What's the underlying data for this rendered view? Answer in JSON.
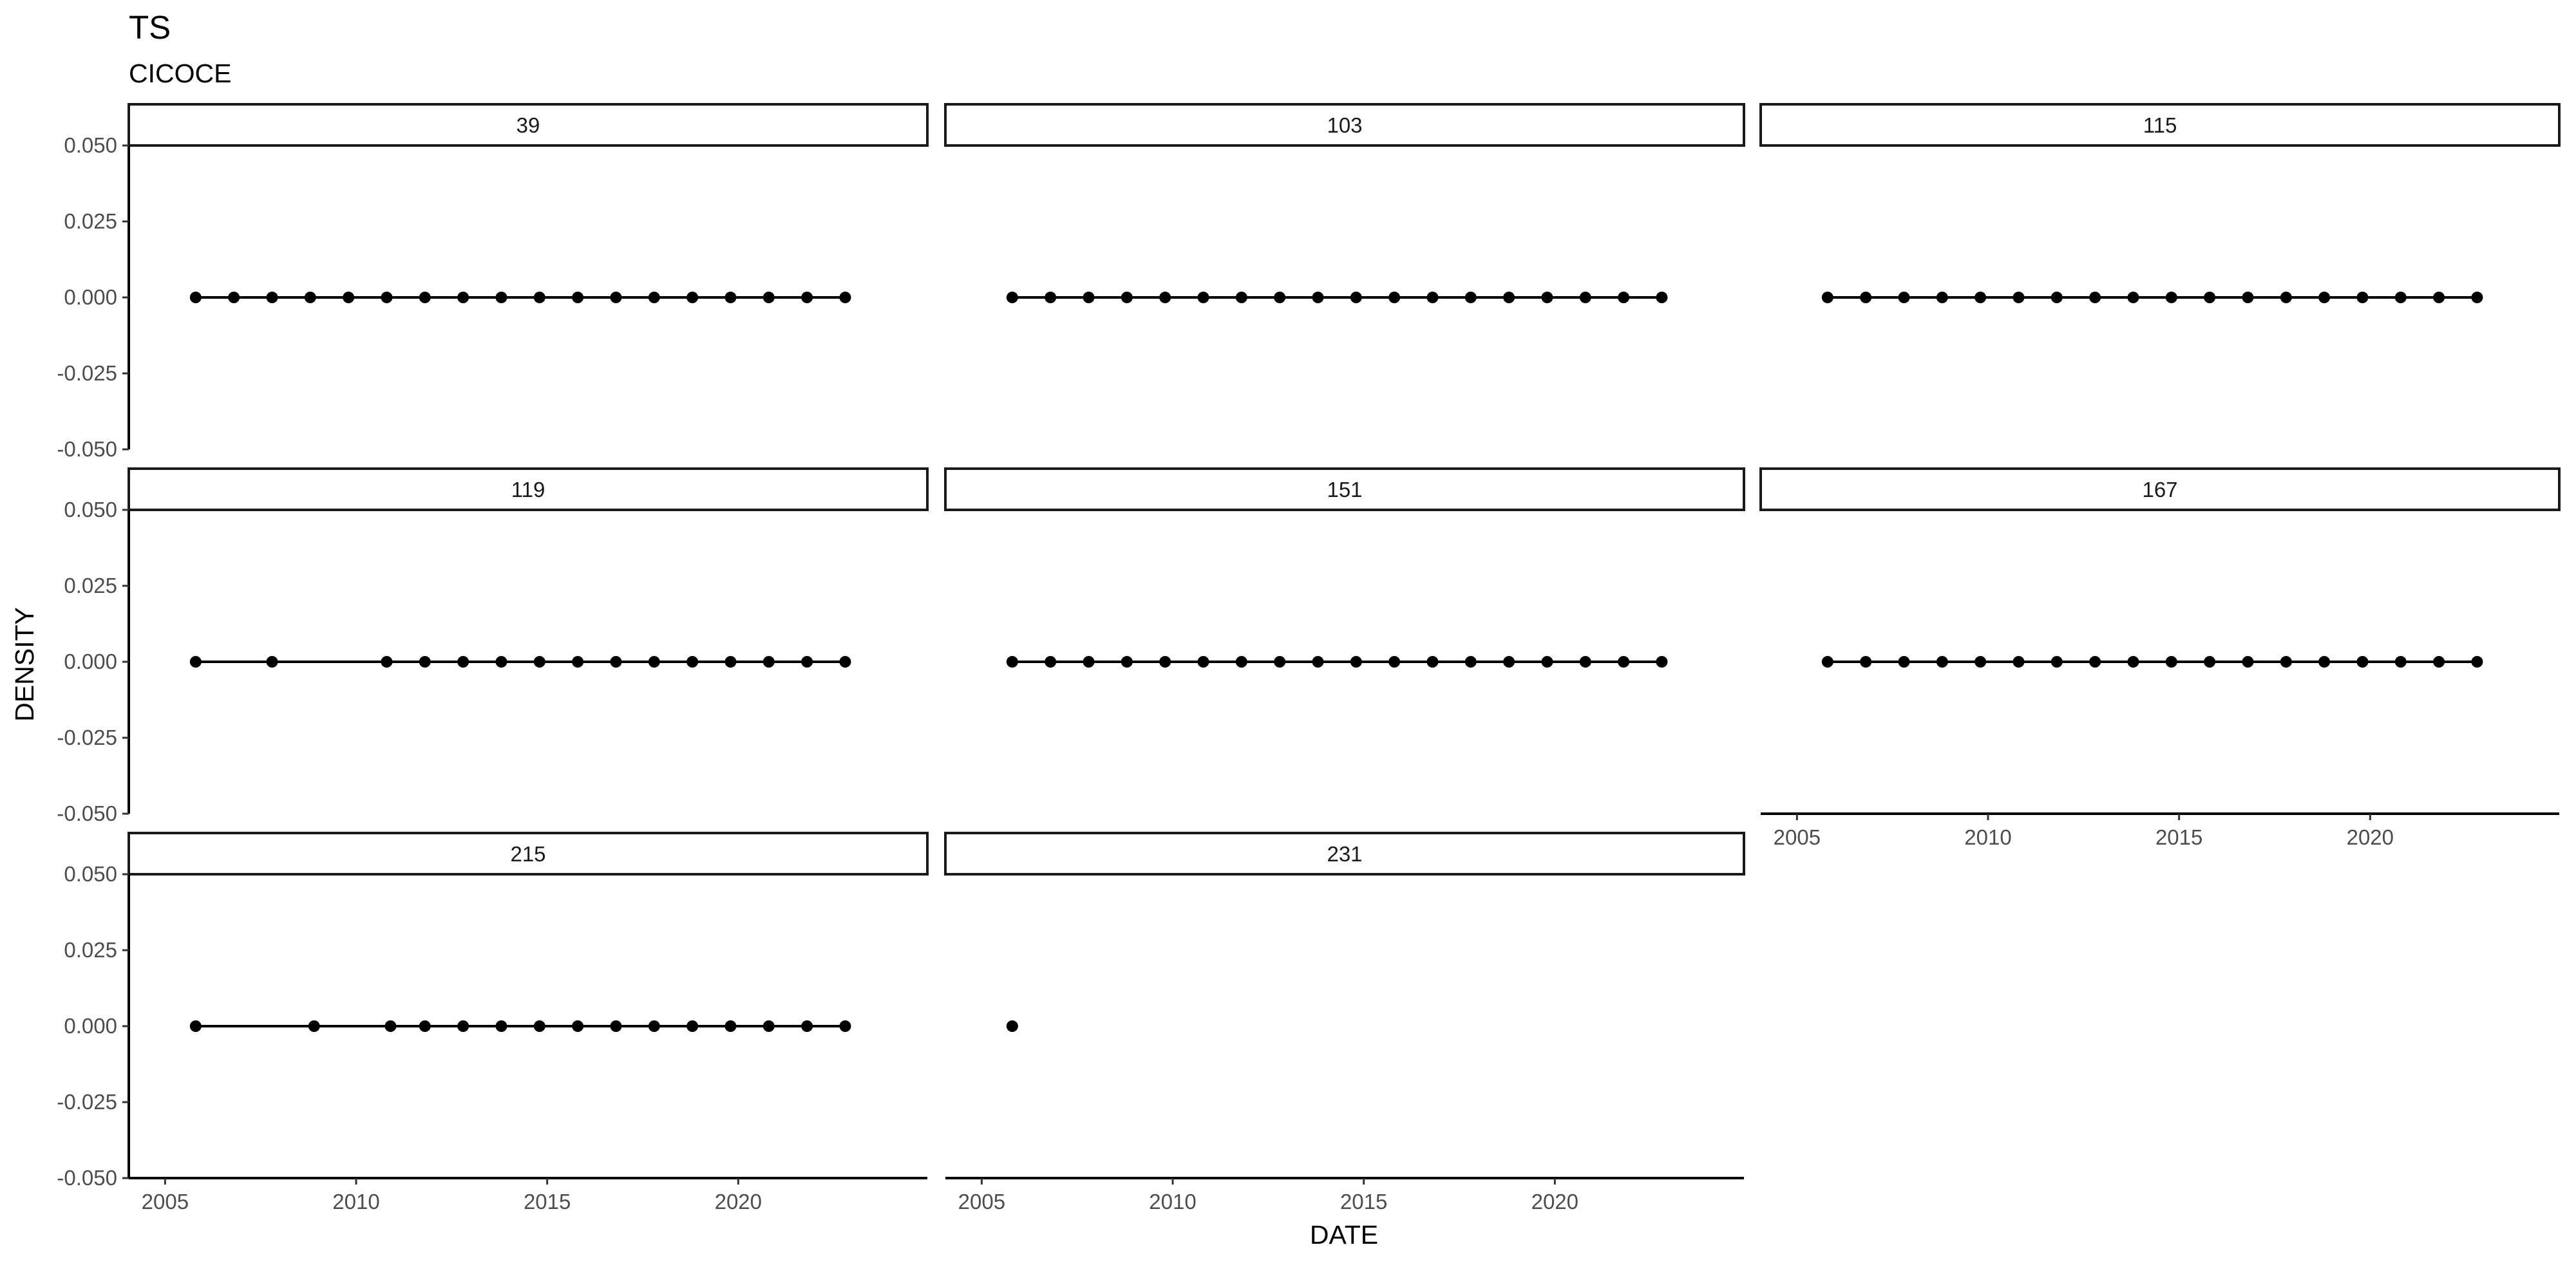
{
  "chart_data": {
    "type": "line",
    "title": "TS",
    "subtitle": "CICOCE",
    "xlabel": "DATE",
    "ylabel": "DENSITY",
    "ylim": [
      -0.05,
      0.05
    ],
    "yticks": [
      "-0.050",
      "-0.025",
      "0.000",
      "0.025",
      "0.050"
    ],
    "xlim": [
      2005,
      2024
    ],
    "xticks": [
      "2005",
      "2010",
      "2015",
      "2020"
    ],
    "grid": false,
    "facets": [
      {
        "label": "39",
        "x": [
          2005.8,
          2006.8,
          2007.8,
          2008.8,
          2009.8,
          2010.8,
          2011.8,
          2012.8,
          2013.8,
          2014.8,
          2015.8,
          2016.8,
          2017.8,
          2018.8,
          2019.8,
          2020.8,
          2021.8,
          2022.8
        ],
        "y": [
          0,
          0,
          0,
          0,
          0,
          0,
          0,
          0,
          0,
          0,
          0,
          0,
          0,
          0,
          0,
          0,
          0,
          0
        ]
      },
      {
        "label": "103",
        "x": [
          2005.8,
          2006.8,
          2007.8,
          2008.8,
          2009.8,
          2010.8,
          2011.8,
          2012.8,
          2013.8,
          2014.8,
          2015.8,
          2016.8,
          2017.8,
          2018.8,
          2019.8,
          2020.8,
          2021.8,
          2022.8
        ],
        "y": [
          0,
          0,
          0,
          0,
          0,
          0,
          0,
          0,
          0,
          0,
          0,
          0,
          0,
          0,
          0,
          0,
          0,
          0
        ]
      },
      {
        "label": "115",
        "x": [
          2005.8,
          2006.8,
          2007.8,
          2008.8,
          2009.8,
          2010.8,
          2011.8,
          2012.8,
          2013.8,
          2014.8,
          2015.8,
          2016.8,
          2017.8,
          2018.8,
          2019.8,
          2020.8,
          2021.8,
          2022.8
        ],
        "y": [
          0,
          0,
          0,
          0,
          0,
          0,
          0,
          0,
          0,
          0,
          0,
          0,
          0,
          0,
          0,
          0,
          0,
          0
        ]
      },
      {
        "label": "119",
        "x": [
          2005.8,
          2007.8,
          2010.8,
          2011.8,
          2012.8,
          2013.8,
          2014.8,
          2015.8,
          2016.8,
          2017.8,
          2018.8,
          2019.8,
          2020.8,
          2021.8,
          2022.8
        ],
        "y": [
          0,
          0,
          0,
          0,
          0,
          0,
          0,
          0,
          0,
          0,
          0,
          0,
          0,
          0,
          0
        ]
      },
      {
        "label": "151",
        "x": [
          2005.8,
          2006.8,
          2007.8,
          2008.8,
          2009.8,
          2010.8,
          2011.8,
          2012.8,
          2013.8,
          2014.8,
          2015.8,
          2016.8,
          2017.8,
          2018.8,
          2019.8,
          2020.8,
          2021.8,
          2022.8
        ],
        "y": [
          0,
          0,
          0,
          0,
          0,
          0,
          0,
          0,
          0,
          0,
          0,
          0,
          0,
          0,
          0,
          0,
          0,
          0
        ]
      },
      {
        "label": "167",
        "x": [
          2005.8,
          2006.8,
          2007.8,
          2008.8,
          2009.8,
          2010.8,
          2011.8,
          2012.8,
          2013.8,
          2014.8,
          2015.8,
          2016.8,
          2017.8,
          2018.8,
          2019.8,
          2020.8,
          2021.8,
          2022.8
        ],
        "y": [
          0,
          0,
          0,
          0,
          0,
          0,
          0,
          0,
          0,
          0,
          0,
          0,
          0,
          0,
          0,
          0,
          0,
          0
        ]
      },
      {
        "label": "215",
        "x": [
          2005.8,
          2008.9,
          2010.9,
          2011.8,
          2012.8,
          2013.8,
          2014.8,
          2015.8,
          2016.8,
          2017.8,
          2018.8,
          2019.8,
          2020.8,
          2021.8,
          2022.8
        ],
        "y": [
          0,
          0,
          0,
          0,
          0,
          0,
          0,
          0,
          0,
          0,
          0,
          0,
          0,
          0,
          0
        ]
      },
      {
        "label": "231",
        "x": [
          2005.8
        ],
        "y": [
          0
        ]
      }
    ]
  }
}
